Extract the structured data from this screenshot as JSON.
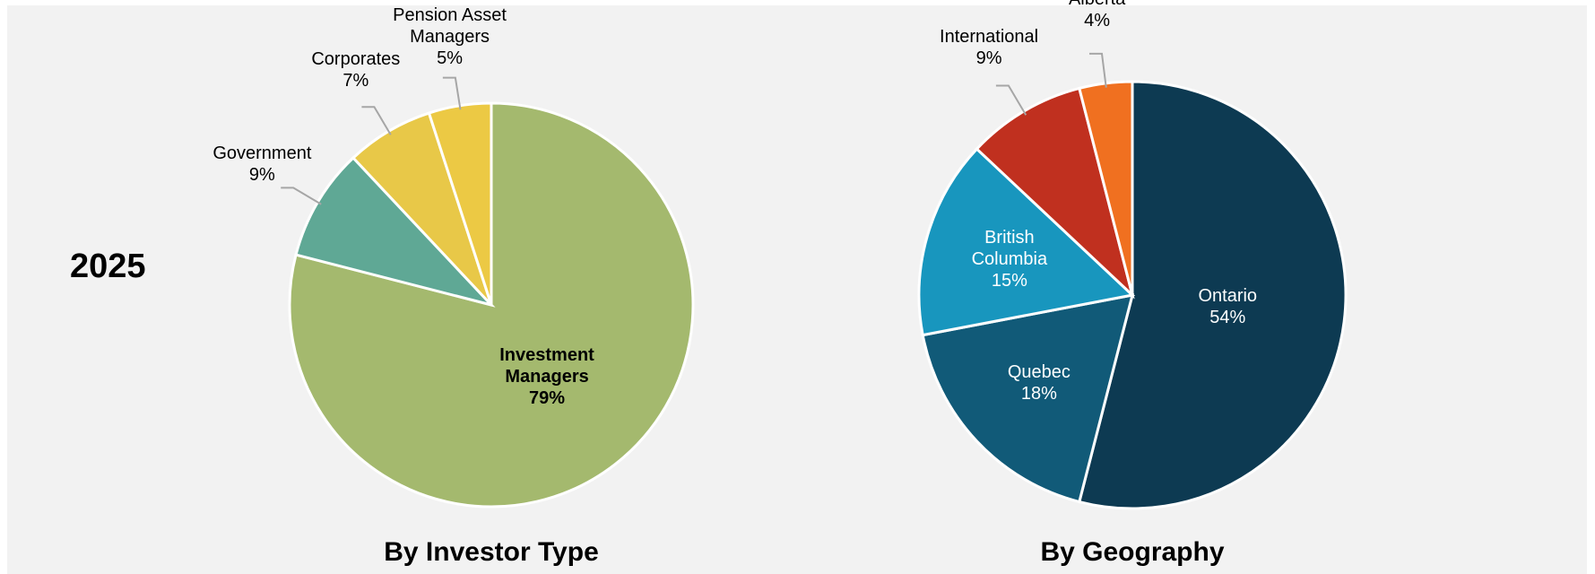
{
  "label": "2025",
  "chart_data": [
    {
      "type": "pie",
      "title": "By Investor Type",
      "categories": [
        "Investment Managers",
        "Government",
        "Corporates",
        "Pension Asset Managers"
      ],
      "values": [
        79,
        9,
        7,
        5
      ],
      "value_labels": [
        "79%",
        "9%",
        "7%",
        "5%"
      ],
      "colors": [
        "#a4b96e",
        "#5fa895",
        "#e8c848",
        "#ecc944"
      ]
    },
    {
      "type": "pie",
      "title": "By Geography",
      "categories": [
        "Ontario",
        "Quebec",
        "British Columbia",
        "International",
        "Alberta"
      ],
      "values": [
        54,
        18,
        15,
        9,
        4
      ],
      "value_labels": [
        "54%",
        "18%",
        "15%",
        "9%",
        "4%"
      ],
      "colors": [
        "#0d3a52",
        "#115a78",
        "#1896be",
        "#c0301f",
        "#f07020"
      ]
    }
  ]
}
